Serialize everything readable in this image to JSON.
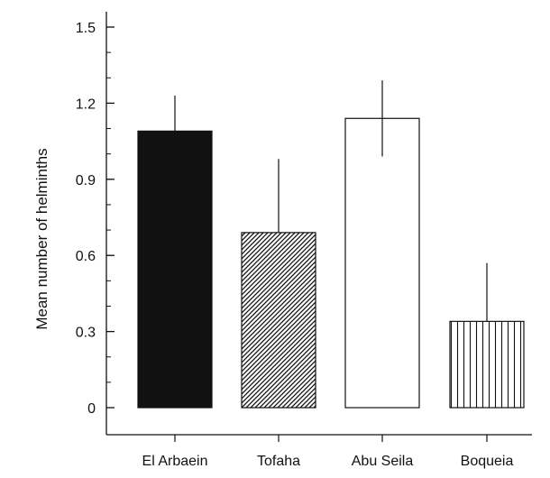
{
  "chart_data": {
    "type": "bar",
    "title": "",
    "xlabel": "",
    "ylabel": "Mean number of helminths",
    "categories": [
      "El Arbaein",
      "Tofaha",
      "Abu Seila",
      "Boqueia"
    ],
    "values": [
      1.09,
      0.69,
      1.14,
      0.34
    ],
    "errors": [
      {
        "low": 1.09,
        "high": 1.23
      },
      {
        "low": 0.69,
        "high": 0.98
      },
      {
        "low": 0.99,
        "high": 1.29
      },
      {
        "low": 0.34,
        "high": 0.57
      }
    ],
    "fills": [
      "solid-black",
      "diagonal-hatch",
      "white",
      "vertical-stripes"
    ],
    "ylim": [
      0,
      1.5
    ],
    "yticks": [
      "0",
      "0.3",
      "0.6",
      "0.9",
      "1.2",
      "1.5"
    ],
    "ytick_values": [
      0,
      0.3,
      0.6,
      0.9,
      1.2,
      1.5
    ],
    "minor_tick_step": 0.1,
    "grid": false,
    "colors": {
      "ink": "#111111",
      "background": "#ffffff"
    }
  }
}
